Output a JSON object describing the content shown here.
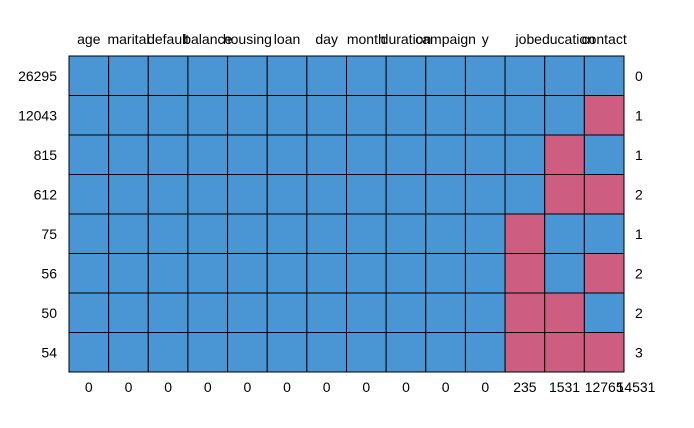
{
  "chart_data": {
    "type": "heatmap",
    "title": "",
    "columns": [
      "age",
      "marital",
      "default",
      "balance",
      "housing",
      "loan",
      "day",
      "month",
      "duration",
      "campaign",
      "y",
      "job",
      "education",
      "contact"
    ],
    "row_counts": [
      "26295",
      "12043",
      "815",
      "612",
      "75",
      "56",
      "50",
      "54"
    ],
    "row_missing_totals": [
      "0",
      "1",
      "1",
      "2",
      "1",
      "2",
      "2",
      "3"
    ],
    "column_missing_totals": [
      "0",
      "0",
      "0",
      "0",
      "0",
      "0",
      "0",
      "0",
      "0",
      "0",
      "0",
      "235",
      "1531",
      "12765",
      "14531"
    ],
    "matrix": [
      [
        0,
        0,
        0,
        0,
        0,
        0,
        0,
        0,
        0,
        0,
        0,
        0,
        0,
        0
      ],
      [
        0,
        0,
        0,
        0,
        0,
        0,
        0,
        0,
        0,
        0,
        0,
        0,
        0,
        1
      ],
      [
        0,
        0,
        0,
        0,
        0,
        0,
        0,
        0,
        0,
        0,
        0,
        0,
        1,
        0
      ],
      [
        0,
        0,
        0,
        0,
        0,
        0,
        0,
        0,
        0,
        0,
        0,
        0,
        1,
        1
      ],
      [
        0,
        0,
        0,
        0,
        0,
        0,
        0,
        0,
        0,
        0,
        0,
        1,
        0,
        0
      ],
      [
        0,
        0,
        0,
        0,
        0,
        0,
        0,
        0,
        0,
        0,
        0,
        1,
        0,
        1
      ],
      [
        0,
        0,
        0,
        0,
        0,
        0,
        0,
        0,
        0,
        0,
        0,
        1,
        1,
        0
      ],
      [
        0,
        0,
        0,
        0,
        0,
        0,
        0,
        0,
        0,
        0,
        0,
        1,
        1,
        1
      ]
    ],
    "colors": {
      "observed": "#4a95d4",
      "missing": "#cd5e82",
      "grid": "#000000"
    }
  }
}
